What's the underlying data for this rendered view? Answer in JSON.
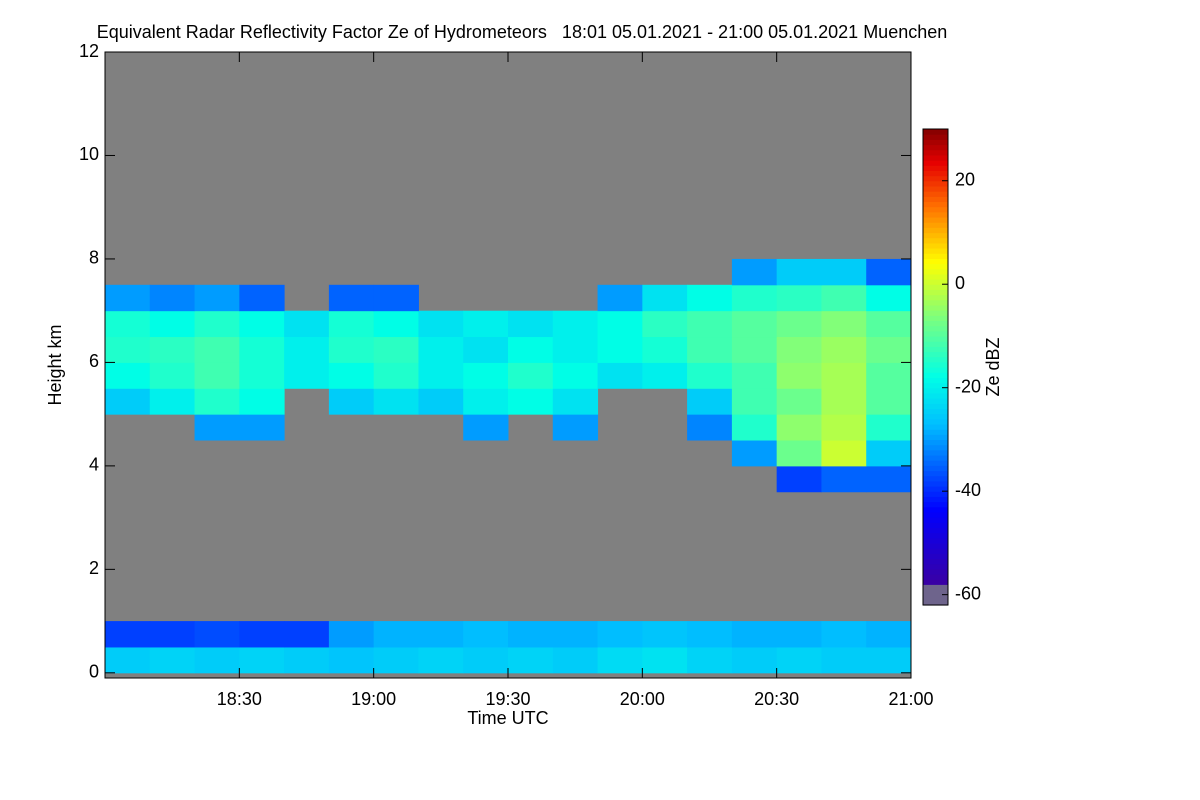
{
  "chart_data": {
    "type": "heatmap",
    "title": "Equivalent Radar Reflectivity Factor Ze of Hydrometeors   18:01 05.01.2021 - 21:00 05.01.2021 Muenchen",
    "x_label": "Time UTC",
    "y_label": "Height km",
    "colorbar_label": "Ze dBZ",
    "background_color": "#808080",
    "x_bins": [
      0,
      10,
      20,
      30,
      40,
      50,
      60,
      70,
      80,
      90,
      100,
      110,
      120,
      130,
      140,
      150,
      160,
      170,
      180
    ],
    "y_bins": [
      0,
      0.5,
      1,
      1.5,
      2,
      2.5,
      3,
      3.5,
      4,
      4.5,
      5,
      5.5,
      6,
      6.5,
      7,
      7.5,
      8
    ],
    "z": [
      [
        -25,
        -24,
        -25,
        -24,
        -25,
        -26,
        -25,
        -24,
        -25,
        -24,
        -25,
        -23,
        -22,
        -24,
        -25,
        -24,
        -25,
        -25
      ],
      [
        -38,
        -38,
        -37,
        -38,
        -38,
        -30,
        -28,
        -28,
        -27,
        -28,
        -28,
        -27,
        -26,
        -27,
        -28,
        -28,
        -27,
        -28
      ],
      [
        null,
        null,
        null,
        null,
        null,
        null,
        null,
        null,
        null,
        null,
        null,
        null,
        null,
        null,
        null,
        null,
        null,
        null
      ],
      [
        null,
        null,
        null,
        null,
        null,
        null,
        null,
        null,
        null,
        null,
        null,
        null,
        null,
        null,
        null,
        null,
        null,
        null
      ],
      [
        null,
        null,
        null,
        null,
        null,
        null,
        null,
        null,
        null,
        null,
        null,
        null,
        null,
        null,
        null,
        null,
        null,
        null
      ],
      [
        null,
        null,
        null,
        null,
        null,
        null,
        null,
        null,
        null,
        null,
        null,
        null,
        null,
        null,
        null,
        null,
        null,
        null
      ],
      [
        null,
        null,
        null,
        null,
        null,
        null,
        null,
        null,
        null,
        null,
        null,
        null,
        null,
        null,
        null,
        null,
        null,
        null
      ],
      [
        null,
        null,
        null,
        null,
        null,
        null,
        null,
        null,
        null,
        null,
        null,
        null,
        null,
        null,
        null,
        -38,
        -35,
        -35
      ],
      [
        null,
        null,
        null,
        null,
        null,
        null,
        null,
        null,
        null,
        null,
        null,
        null,
        null,
        null,
        -30,
        -8,
        0,
        -25
      ],
      [
        null,
        null,
        -30,
        -30,
        null,
        null,
        null,
        null,
        -30,
        null,
        -30,
        null,
        null,
        -32,
        -15,
        -5,
        -2,
        -15
      ],
      [
        -25,
        -20,
        -15,
        -18,
        null,
        -25,
        -22,
        -25,
        -20,
        -18,
        -22,
        null,
        null,
        -25,
        -12,
        -8,
        -3,
        -10
      ],
      [
        -18,
        -15,
        -12,
        -16,
        -20,
        -18,
        -15,
        -20,
        -18,
        -15,
        -18,
        -22,
        -20,
        -15,
        -12,
        -5,
        -3,
        -10
      ],
      [
        -15,
        -14,
        -12,
        -16,
        -20,
        -15,
        -14,
        -20,
        -22,
        -18,
        -20,
        -18,
        -16,
        -12,
        -10,
        -6,
        -4,
        -8
      ],
      [
        -16,
        -18,
        -15,
        -18,
        -22,
        -16,
        -18,
        -22,
        -20,
        -22,
        -20,
        -18,
        -14,
        -12,
        -10,
        -8,
        -6,
        -10
      ],
      [
        -30,
        -32,
        -30,
        -35,
        null,
        -35,
        -35,
        null,
        null,
        null,
        null,
        -30,
        -22,
        -18,
        -15,
        -14,
        -12,
        -18
      ],
      [
        null,
        null,
        null,
        null,
        null,
        null,
        null,
        null,
        null,
        null,
        null,
        null,
        null,
        null,
        -30,
        -25,
        -25,
        -35
      ]
    ],
    "xlim": [
      0,
      180
    ],
    "ylim": [
      -0.1,
      12
    ],
    "zlim": [
      -62,
      30
    ],
    "xticks": [
      {
        "value": 30,
        "label": "18:30"
      },
      {
        "value": 60,
        "label": "19:00"
      },
      {
        "value": 90,
        "label": "19:30"
      },
      {
        "value": 120,
        "label": "20:00"
      },
      {
        "value": 150,
        "label": "20:30"
      },
      {
        "value": 180,
        "label": "21:00"
      }
    ],
    "yticks": [
      0,
      2,
      4,
      6,
      8,
      10,
      12
    ],
    "zticks": [
      -60,
      -40,
      -20,
      0,
      20
    ]
  }
}
